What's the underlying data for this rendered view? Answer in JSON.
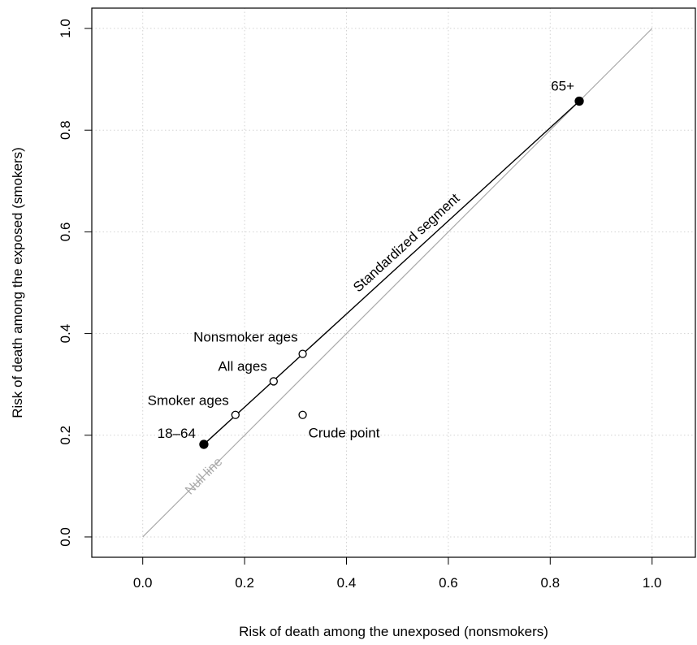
{
  "chart_data": {
    "type": "scatter",
    "xlabel": "Risk of death among the unexposed (nonsmokers)",
    "ylabel": "Risk of death among the exposed (smokers)",
    "xlim": [
      -0.1,
      1.085
    ],
    "ylim": [
      -0.04,
      1.04
    ],
    "xticks": [
      "0.0",
      "0.2",
      "0.4",
      "0.6",
      "0.8",
      "1.0"
    ],
    "yticks": [
      "0.0",
      "0.2",
      "0.4",
      "0.6",
      "0.8",
      "1.0"
    ],
    "grid": true,
    "null_line": {
      "label": "Null line",
      "from": [
        0,
        0
      ],
      "to": [
        1,
        1
      ],
      "color": "#aaaaaa"
    },
    "segment": {
      "label": "Standardized segment",
      "from": [
        0.12,
        0.182
      ],
      "to": [
        0.857,
        0.857
      ]
    },
    "points": [
      {
        "label": "18–64",
        "x": 0.12,
        "y": 0.182,
        "filled": true
      },
      {
        "label": "65+",
        "x": 0.857,
        "y": 0.857,
        "filled": true
      },
      {
        "label": "Smoker ages",
        "x": 0.182,
        "y": 0.24,
        "filled": false
      },
      {
        "label": "All ages",
        "x": 0.257,
        "y": 0.306,
        "filled": false
      },
      {
        "label": "Nonsmoker ages",
        "x": 0.314,
        "y": 0.36,
        "filled": false
      },
      {
        "label": "Crude point",
        "x": 0.314,
        "y": 0.24,
        "filled": false
      }
    ]
  }
}
